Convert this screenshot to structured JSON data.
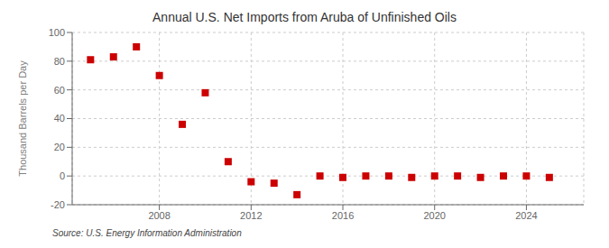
{
  "chart_data": {
    "type": "scatter",
    "title": "Annual U.S. Net Imports from Aruba of Unfinished Oils",
    "y_label": "Thousand Barrels per Day",
    "annotations": [
      "Source: U.S. Energy Information Administration"
    ],
    "x": [
      2005,
      2006,
      2007,
      2008,
      2009,
      2010,
      2011,
      2012,
      2013,
      2014,
      2015,
      2016,
      2017,
      2018,
      2019,
      2020,
      2021,
      2022,
      2023,
      2024,
      2025
    ],
    "values": [
      81,
      83,
      90,
      70,
      36,
      58,
      10,
      -4,
      -5,
      -13,
      0,
      -1,
      0,
      0,
      -1,
      0,
      0,
      -1,
      0,
      0,
      -1
    ],
    "color": "#cc0000",
    "marker": "square",
    "xlim": [
      2004.2,
      2026.5
    ],
    "ylim": [
      -20,
      100
    ],
    "xticks": [
      2008,
      2012,
      2016,
      2020,
      2024
    ],
    "yticks": [
      -20,
      0,
      20,
      40,
      60,
      80,
      100
    ],
    "grid": true
  }
}
